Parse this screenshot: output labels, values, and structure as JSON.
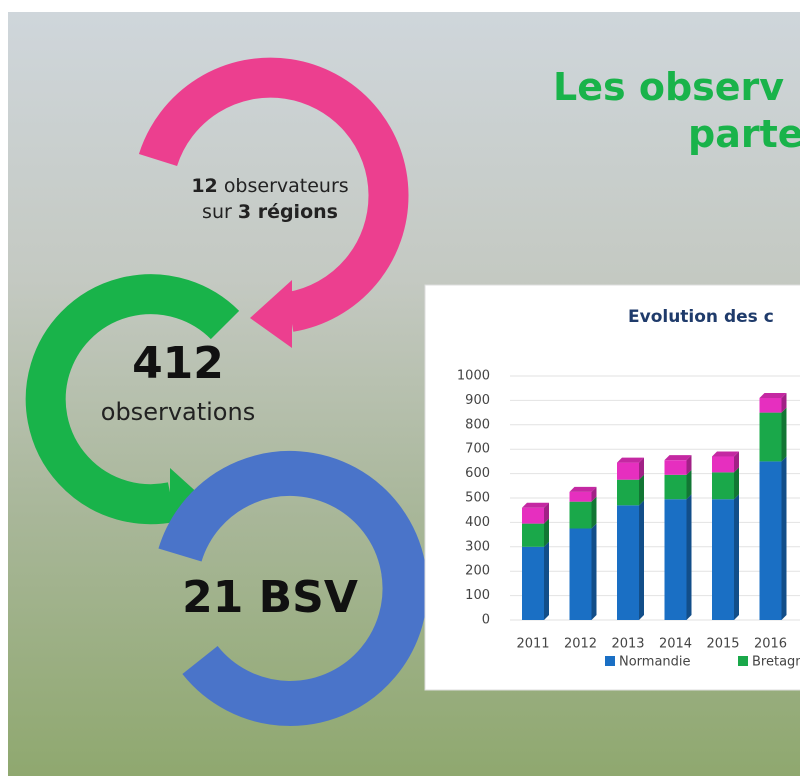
{
  "title": {
    "line1": "Les observ",
    "line2": "parte"
  },
  "cycle": {
    "step1": {
      "count": "12",
      "count_text": "observateurs",
      "prefix": "sur",
      "regions": "3 régions"
    },
    "step2": {
      "count": "412",
      "text": "observations"
    },
    "step3": {
      "text": "21 BSV"
    }
  },
  "chart_data": {
    "type": "stacked-bar",
    "title": "Evolution des c",
    "categories": [
      "2011",
      "2012",
      "2013",
      "2014",
      "2015",
      "2016"
    ],
    "series": [
      {
        "name": "Normandie",
        "color": "#1a6fc4",
        "values": [
          300,
          375,
          470,
          495,
          495,
          650
        ]
      },
      {
        "name": "Bretagn",
        "color": "#1aa84a",
        "values": [
          95,
          110,
          105,
          100,
          110,
          200
        ]
      },
      {
        "color": "#e62fbf",
        "values": [
          65,
          40,
          70,
          60,
          65,
          60
        ]
      }
    ],
    "ylim": [
      0,
      1000
    ],
    "yticks": [
      0,
      100,
      200,
      300,
      400,
      500,
      600,
      700,
      800,
      900,
      1000
    ],
    "grid": true
  }
}
